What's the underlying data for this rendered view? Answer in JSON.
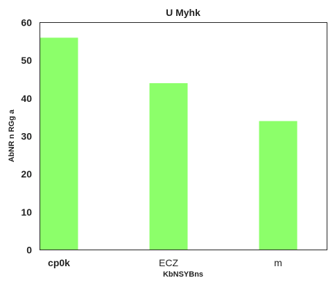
{
  "chart_data": {
    "type": "bar",
    "title": "U Myhk",
    "xlabel": "KbNSYBns",
    "ylabel": "AbNR n RGg  a",
    "categories": [
      "cp0k",
      "ECZ",
      "m"
    ],
    "values": [
      56,
      44,
      34
    ],
    "ylim": [
      0,
      60
    ],
    "yticks": [
      0,
      10,
      20,
      30,
      40,
      50,
      60
    ],
    "bar_color": "#8cff6a",
    "grid": false,
    "legend": "none"
  }
}
